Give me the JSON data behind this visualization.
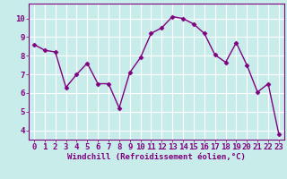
{
  "x": [
    0,
    1,
    2,
    3,
    4,
    5,
    6,
    7,
    8,
    9,
    10,
    11,
    12,
    13,
    14,
    15,
    16,
    17,
    18,
    19,
    20,
    21,
    22,
    23
  ],
  "y": [
    8.6,
    8.3,
    8.2,
    6.3,
    7.0,
    7.6,
    6.5,
    6.5,
    5.2,
    7.1,
    7.9,
    9.2,
    9.5,
    10.1,
    10.0,
    9.7,
    9.2,
    8.05,
    7.65,
    8.7,
    7.5,
    6.05,
    6.5,
    3.8
  ],
  "line_color": "#800080",
  "marker": "D",
  "markersize": 2.5,
  "linewidth": 1.0,
  "bg_color": "#c8ecea",
  "grid_color": "#ffffff",
  "xlabel": "Windchill (Refroidissement éolien,°C)",
  "xlabel_fontsize": 6.5,
  "tick_fontsize": 6.5,
  "xlim": [
    -0.5,
    23.5
  ],
  "ylim": [
    3.5,
    10.8
  ],
  "yticks": [
    4,
    5,
    6,
    7,
    8,
    9,
    10
  ],
  "xticks": [
    0,
    1,
    2,
    3,
    4,
    5,
    6,
    7,
    8,
    9,
    10,
    11,
    12,
    13,
    14,
    15,
    16,
    17,
    18,
    19,
    20,
    21,
    22,
    23
  ]
}
